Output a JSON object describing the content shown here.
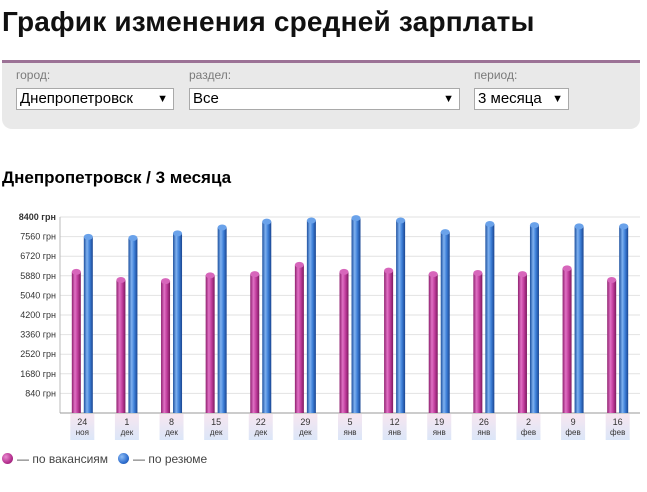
{
  "page": {
    "title": "График изменения средней зарплаты"
  },
  "filters": {
    "city": {
      "label": "город:",
      "value": "Днепропетровск"
    },
    "section": {
      "label": "раздел:",
      "value": "Все"
    },
    "period": {
      "label": "период:",
      "value": "3 месяца"
    }
  },
  "chart_title": "Днепропетровск / 3 месяца",
  "icons": {
    "dropdown": "triangle-down-icon"
  },
  "colors": {
    "vacancies": "#b5308f",
    "resumes": "#2f6fd0",
    "accent": "#9c7296"
  },
  "chart_data": {
    "type": "bar",
    "categories": [
      [
        "24",
        "ноя"
      ],
      [
        "1",
        "дек"
      ],
      [
        "8",
        "дек"
      ],
      [
        "15",
        "дек"
      ],
      [
        "22",
        "дек"
      ],
      [
        "29",
        "дек"
      ],
      [
        "5",
        "янв"
      ],
      [
        "12",
        "янв"
      ],
      [
        "19",
        "янв"
      ],
      [
        "26",
        "янв"
      ],
      [
        "2",
        "фев"
      ],
      [
        "9",
        "фев"
      ],
      [
        "16",
        "фев"
      ]
    ],
    "series": [
      {
        "name": "— по вакансиям",
        "values": [
          6050,
          5700,
          5650,
          5900,
          5950,
          6350,
          6050,
          6100,
          5950,
          6000,
          5950,
          6200,
          5700
        ]
      },
      {
        "name": "— по резюме",
        "values": [
          7550,
          7500,
          7700,
          7950,
          8200,
          8250,
          8350,
          8250,
          7750,
          8100,
          8050,
          8000,
          8000
        ]
      }
    ],
    "y_ticks": [
      "840 грн",
      "1680 грн",
      "2520 грн",
      "3360 грн",
      "4200 грн",
      "5040 грн",
      "5880 грн",
      "6720 грн",
      "7560 грн",
      "8400 грн"
    ],
    "y_tick_values": [
      840,
      1680,
      2520,
      3360,
      4200,
      5040,
      5880,
      6720,
      7560,
      8400
    ],
    "ylim": [
      0,
      8400
    ],
    "grid": true,
    "legend_position": "bottom-left"
  }
}
